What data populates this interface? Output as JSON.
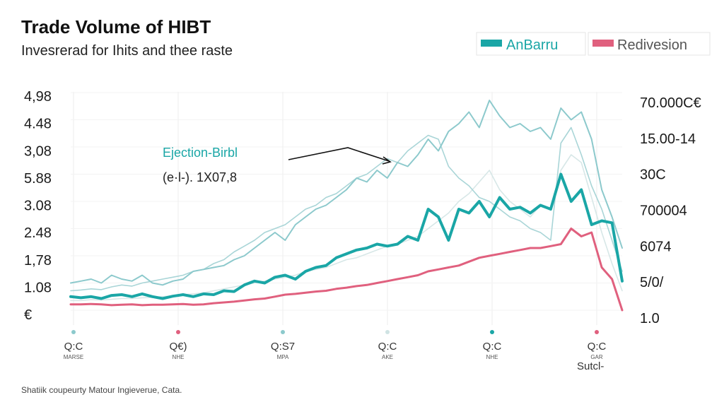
{
  "colors": {
    "teal": "#1aa6a6",
    "pink": "#e0607e",
    "light_teal": "#8cc9cc",
    "light_gray": "#cfe3e3",
    "light_pink": "#f2b8c6"
  },
  "chart_data": {
    "type": "line",
    "title": "Trade Volume of HIBT",
    "subtitle": "Invesrerad for Ihits and thee raste",
    "y_ticks_left": [
      "4,98",
      "4.48",
      "3,08",
      "5.88",
      "3.08",
      "2.48",
      "1,78",
      "1.08",
      "€"
    ],
    "y_ticks_right": [
      "70.000C€",
      "15.00-14",
      "30C",
      "700004",
      "6074",
      "5/0/",
      "1.0"
    ],
    "x_ticks": [
      {
        "label": "Q:C",
        "sub": "MARSE",
        "dot": "#8cc9cc"
      },
      {
        "label": "Q€)",
        "sub": "NHE",
        "dot": "#e0607e"
      },
      {
        "label": "Q:S7",
        "sub": "MPA",
        "dot": "#8cc9cc"
      },
      {
        "label": "Q:C",
        "sub": "AKE",
        "dot": "#cfe3e3"
      },
      {
        "label": "Q:C",
        "sub": "NHE",
        "dot": "#1aa6a6"
      },
      {
        "label": "Q:C",
        "sub": "GAR",
        "dot": "#e0607e"
      }
    ],
    "corner_label": "Sutcl-",
    "grid": true,
    "legend_position": "top-right",
    "legend": [
      {
        "name": "AnBarru",
        "color": "#1aa6a6"
      },
      {
        "name": "Redivesion",
        "color": "#e0607e"
      }
    ],
    "annotation": {
      "label": "Ejection-Birbl",
      "value": "(e·l-). 1X07,8"
    },
    "x": [
      0,
      1,
      2,
      3,
      4,
      5,
      6,
      7,
      8,
      9,
      10,
      11,
      12,
      13,
      14,
      15,
      16,
      17,
      18,
      19,
      20,
      21,
      22,
      23,
      24,
      25,
      26,
      27,
      28,
      29,
      30,
      31,
      32,
      33,
      34,
      35,
      36,
      37,
      38,
      39,
      40,
      41,
      42,
      43,
      44,
      45,
      46,
      47,
      48,
      49,
      50,
      51,
      52,
      53,
      54
    ],
    "ylim": [
      0,
      6
    ],
    "series": [
      {
        "name": "AnBarru",
        "color": "#1aa6a6",
        "width": 4,
        "values": [
          0.55,
          0.52,
          0.55,
          0.5,
          0.58,
          0.6,
          0.55,
          0.62,
          0.55,
          0.5,
          0.56,
          0.6,
          0.55,
          0.62,
          0.6,
          0.7,
          0.68,
          0.85,
          0.95,
          0.9,
          1.05,
          1.1,
          1.0,
          1.2,
          1.3,
          1.35,
          1.55,
          1.65,
          1.75,
          1.8,
          1.9,
          1.85,
          1.9,
          2.1,
          2.0,
          2.8,
          2.6,
          2.0,
          2.8,
          2.7,
          3.0,
          2.6,
          3.1,
          2.8,
          2.85,
          2.7,
          2.9,
          2.8,
          3.7,
          3.0,
          3.3,
          2.4,
          2.5,
          2.45,
          0.95
        ]
      },
      {
        "name": "Redivesion",
        "color": "#e0607e",
        "width": 3,
        "values": [
          0.35,
          0.35,
          0.36,
          0.35,
          0.33,
          0.34,
          0.35,
          0.33,
          0.34,
          0.34,
          0.35,
          0.36,
          0.34,
          0.35,
          0.38,
          0.4,
          0.42,
          0.45,
          0.48,
          0.5,
          0.55,
          0.6,
          0.62,
          0.65,
          0.68,
          0.7,
          0.75,
          0.78,
          0.82,
          0.85,
          0.9,
          0.95,
          1.0,
          1.05,
          1.1,
          1.2,
          1.25,
          1.3,
          1.35,
          1.45,
          1.55,
          1.6,
          1.65,
          1.7,
          1.75,
          1.8,
          1.8,
          1.85,
          1.9,
          2.3,
          2.1,
          2.2,
          1.3,
          1.0,
          0.2
        ]
      },
      {
        "name": "",
        "color": "#8cc9cc",
        "width": 2,
        "values": [
          0.9,
          0.95,
          1.0,
          0.9,
          1.1,
          1.0,
          0.95,
          1.1,
          0.9,
          0.85,
          0.95,
          1.0,
          1.2,
          1.25,
          1.3,
          1.35,
          1.5,
          1.6,
          1.8,
          2.0,
          2.2,
          2.0,
          2.4,
          2.6,
          2.8,
          2.9,
          3.1,
          3.3,
          3.6,
          3.5,
          3.8,
          3.6,
          4.0,
          3.9,
          4.2,
          4.6,
          4.3,
          4.8,
          5.0,
          5.3,
          4.9,
          5.6,
          5.2,
          4.9,
          5.0,
          4.8,
          4.9,
          4.6,
          5.4,
          5.1,
          5.3,
          4.6,
          3.3,
          2.6,
          1.8
        ]
      },
      {
        "name": "",
        "color": "#a9d5d7",
        "width": 1.6,
        "values": [
          0.7,
          0.72,
          0.75,
          0.73,
          0.8,
          0.85,
          0.82,
          0.9,
          0.95,
          1.0,
          1.05,
          1.1,
          1.2,
          1.25,
          1.4,
          1.5,
          1.7,
          1.85,
          2.0,
          2.2,
          2.3,
          2.4,
          2.6,
          2.8,
          2.9,
          3.1,
          3.2,
          3.4,
          3.6,
          3.7,
          3.9,
          4.1,
          4.0,
          4.3,
          4.5,
          4.7,
          4.6,
          3.9,
          3.6,
          3.4,
          3.1,
          3.0,
          2.8,
          2.6,
          2.5,
          2.3,
          2.2,
          2.0,
          4.5,
          4.9,
          4.2,
          3.4,
          2.8,
          2.0,
          1.2
        ]
      },
      {
        "name": "",
        "color": "#d7e7e7",
        "width": 1.6,
        "values": [
          0.45,
          0.45,
          0.47,
          0.46,
          0.48,
          0.5,
          0.5,
          0.52,
          0.53,
          0.55,
          0.57,
          0.6,
          0.62,
          0.65,
          0.7,
          0.75,
          0.8,
          0.85,
          0.9,
          0.95,
          1.0,
          1.05,
          1.1,
          1.2,
          1.25,
          1.3,
          1.4,
          1.5,
          1.55,
          1.65,
          1.75,
          1.85,
          1.9,
          2.0,
          2.1,
          2.3,
          2.5,
          2.7,
          3.0,
          3.2,
          3.5,
          3.8,
          3.3,
          3.0,
          2.8,
          2.6,
          2.9,
          2.8,
          3.8,
          4.2,
          4.0,
          3.1,
          2.2,
          1.4,
          0.7
        ]
      }
    ]
  },
  "footer": "Shatiik coupeurty Matour Ingieverue, Cata."
}
